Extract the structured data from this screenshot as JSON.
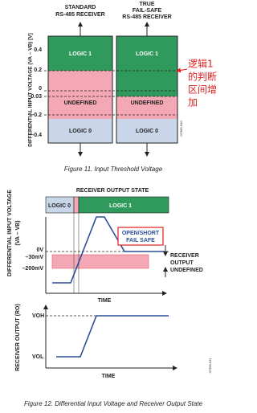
{
  "figure11": {
    "col1": [
      "STANDARD",
      "RS-485 RECEIVER"
    ],
    "col2": [
      "TRUE",
      "FAIL-SAFE",
      "RS-485 RECEIVER"
    ],
    "logic1": "LOGIC 1",
    "undefined": "UNDEFINED",
    "logic0": "LOGIC 0",
    "yticks": [
      "0.4",
      "0.2",
      "0",
      "–0.03",
      "–0.2",
      "–0.4"
    ],
    "ylabel": "DIFFERENTIAL INPUT VOLTAGE (VA – VB) [V]",
    "code": "07356-010",
    "annotation": [
      "逻辑1",
      "的判断",
      "区间增",
      "加"
    ],
    "caption": "Figure 11. Input Threshold Voltage"
  },
  "figure12": {
    "state_title": "RECEIVER OUTPUT STATE",
    "logic0": "LOGIC 0",
    "logic1": "LOGIC 1",
    "ylabel": [
      "DIFFERENTIAL INPUT VOLTAGE",
      "(VA – VB)"
    ],
    "levels": [
      "0V",
      "–30mV",
      "–200mV"
    ],
    "failsafe": [
      "OPEN/SHORT",
      "FAIL SAFE"
    ],
    "undefined": [
      "RECEIVER",
      "OUTPUT",
      "UNDEFINED"
    ],
    "time": "TIME",
    "ro_label": "RECEIVER OUTPUT (RO)",
    "voh": "VOH",
    "vol": "VOL",
    "time2": "TIME",
    "code": "07356-011",
    "caption": "Figure 12. Differential Input Voltage and Receiver Output State"
  }
}
